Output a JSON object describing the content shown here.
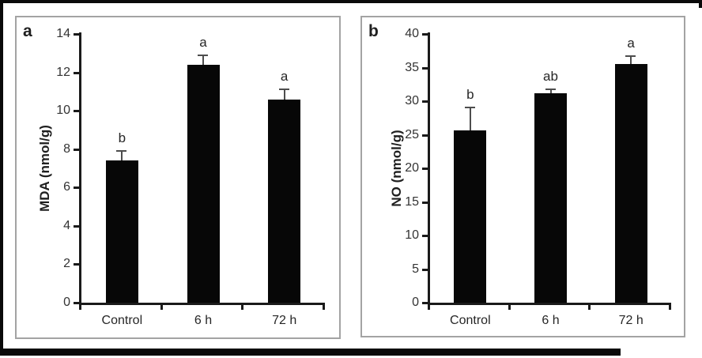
{
  "figure": {
    "description": "Two-panel bar chart figure",
    "frame_color": "#0a0a0a",
    "panel_border_color": "#a3a3a3",
    "bar_color": "#070707"
  },
  "chart_data": [
    {
      "type": "bar",
      "panel_label": "a",
      "title": "",
      "xlabel": "",
      "ylabel": "MDA (nmol/g)",
      "categories": [
        "Control",
        "6 h",
        "72 h"
      ],
      "values": [
        7.4,
        12.4,
        10.6
      ],
      "errors_upper": [
        0.5,
        0.5,
        0.5
      ],
      "sig_letters": [
        "b",
        "a",
        "a"
      ],
      "ylim": [
        0,
        14
      ],
      "y_ticks": [
        0,
        2,
        4,
        6,
        8,
        10,
        12,
        14
      ],
      "grid": false,
      "legend": "none",
      "bar_color": "#070707"
    },
    {
      "type": "bar",
      "panel_label": "b",
      "title": "",
      "xlabel": "",
      "ylabel": "NO (nmol/g)",
      "categories": [
        "Control",
        "6 h",
        "72 h"
      ],
      "values": [
        25.6,
        31.2,
        35.5
      ],
      "errors_upper": [
        3.5,
        0.6,
        1.2
      ],
      "sig_letters": [
        "b",
        "ab",
        "a"
      ],
      "ylim": [
        0,
        40
      ],
      "y_ticks": [
        0,
        5,
        10,
        15,
        20,
        25,
        30,
        35,
        40
      ],
      "grid": false,
      "legend": "none",
      "bar_color": "#070707"
    }
  ]
}
